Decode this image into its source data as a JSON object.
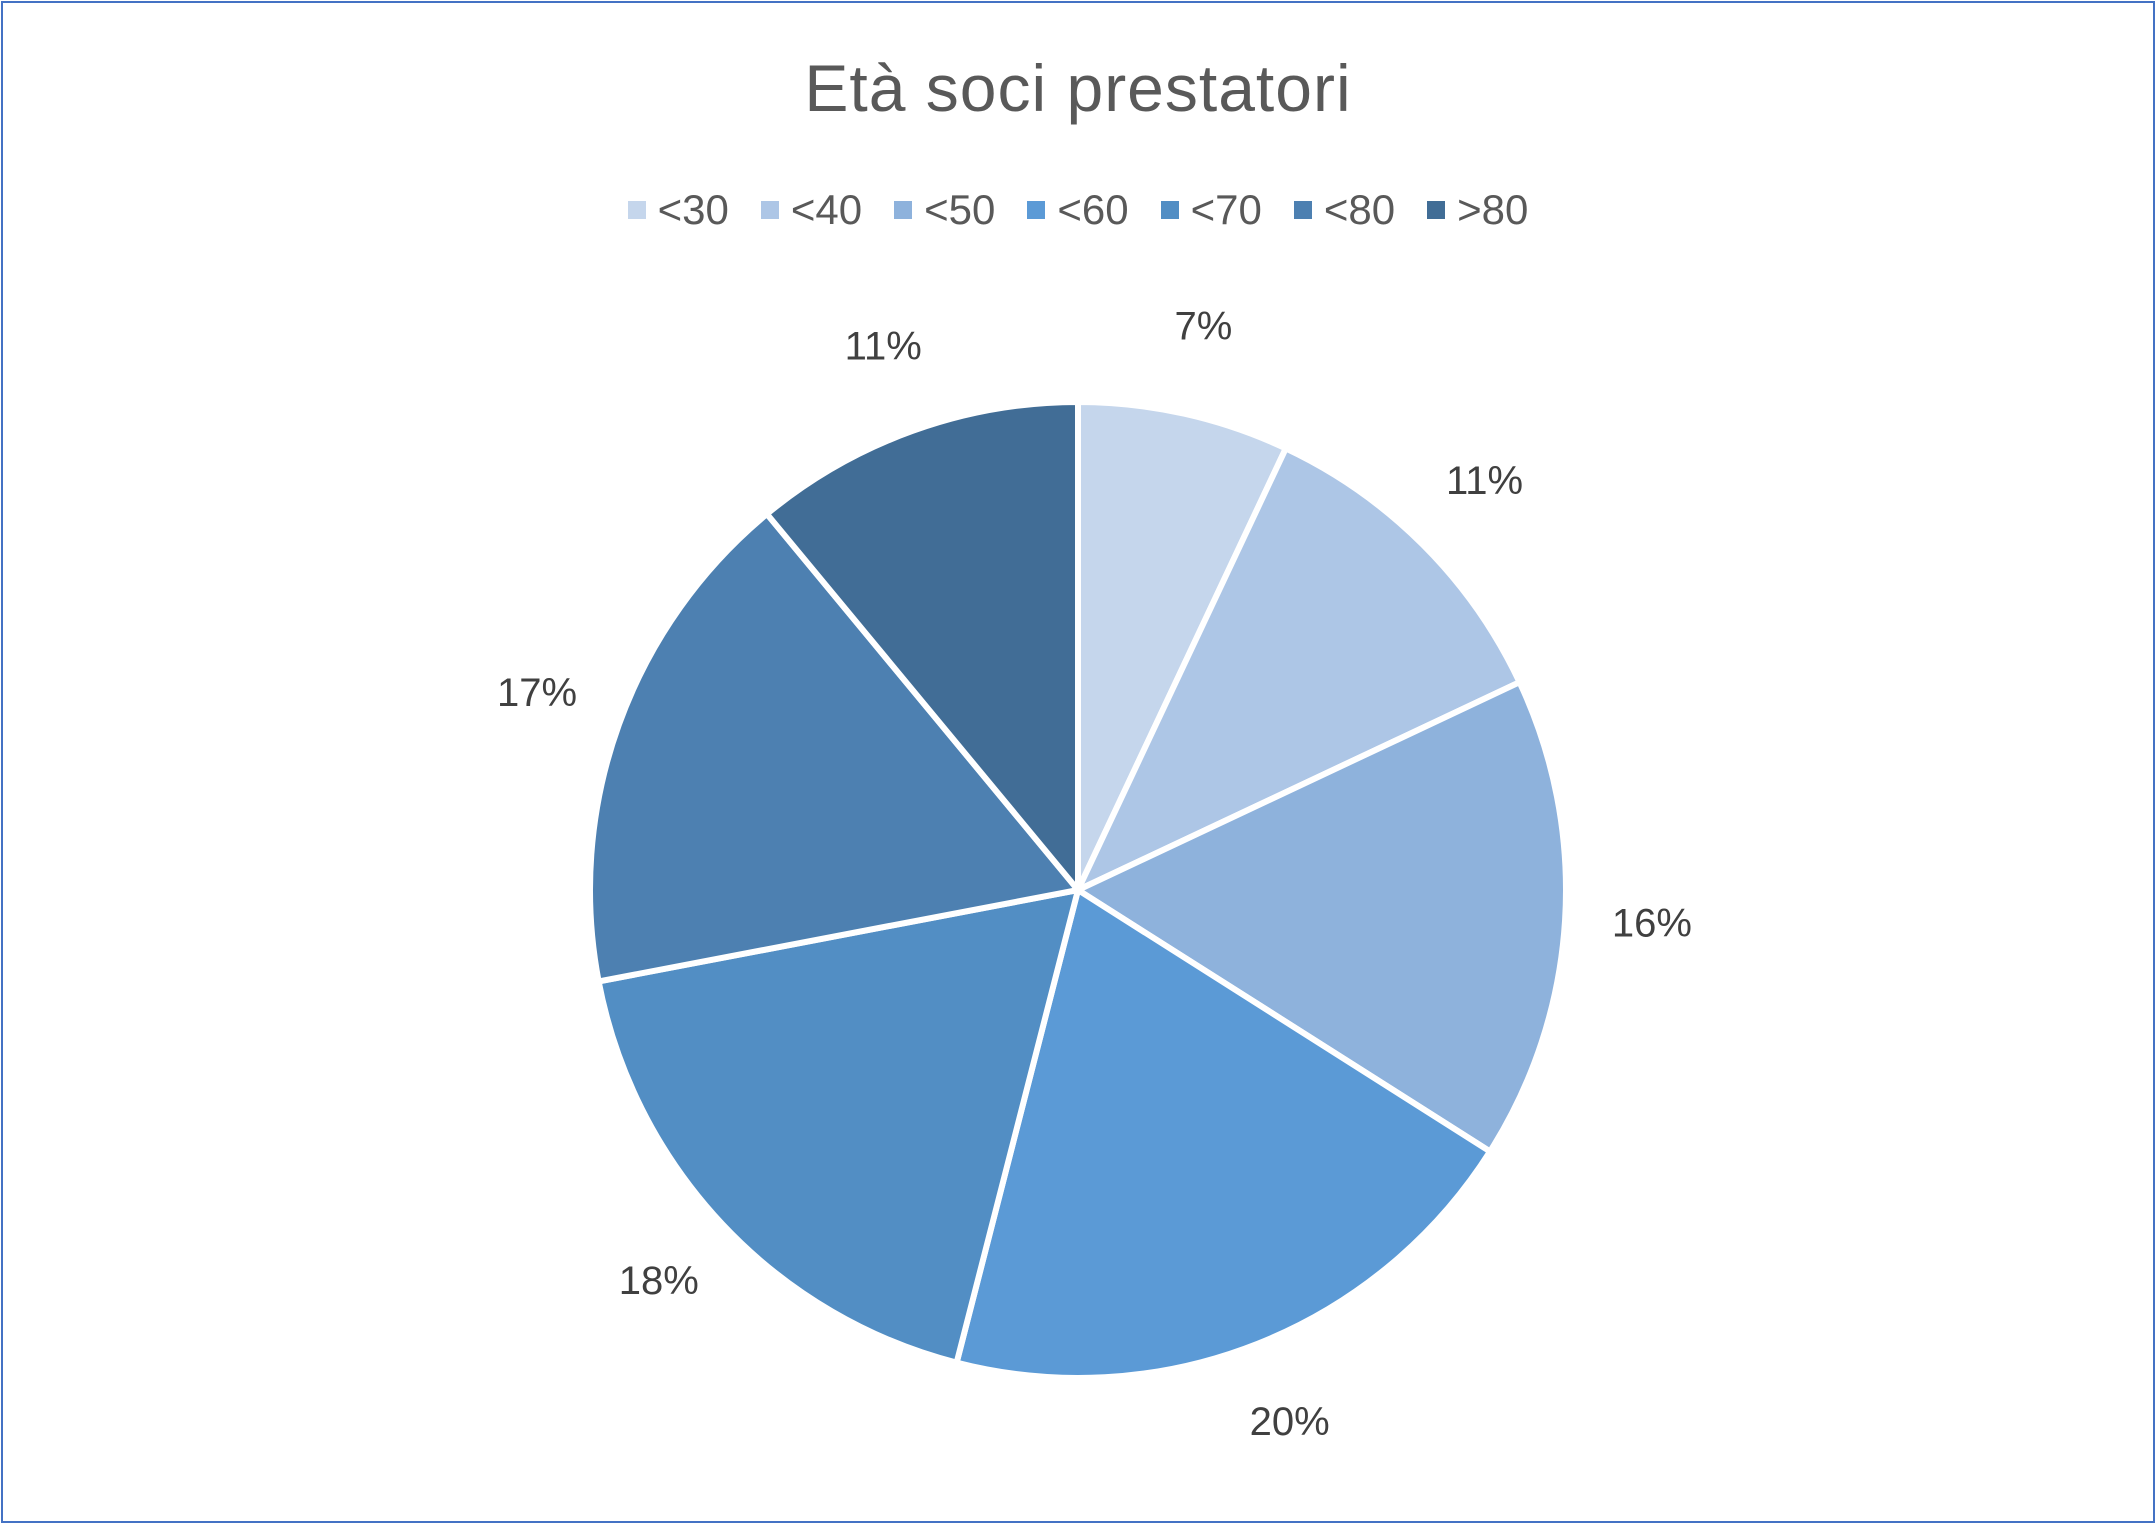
{
  "chart_data": {
    "type": "pie",
    "title": "Età soci prestatori",
    "legend_position": "top",
    "categories": [
      "<30",
      "<40",
      "<50",
      "<60",
      "<70",
      "<80",
      ">80"
    ],
    "values": [
      7,
      11,
      16,
      20,
      18,
      17,
      11
    ],
    "labels": [
      "7%",
      "11%",
      "16%",
      "20%",
      "18%",
      "17%",
      "11%"
    ],
    "colors": [
      "#c5d6ec",
      "#adc6e6",
      "#8eb2dc",
      "#5b9ad6",
      "#528ec4",
      "#4d80b1",
      "#416d96"
    ],
    "start_angle_deg": 0,
    "direction": "clockwise",
    "slice_border_color": "#ffffff"
  }
}
